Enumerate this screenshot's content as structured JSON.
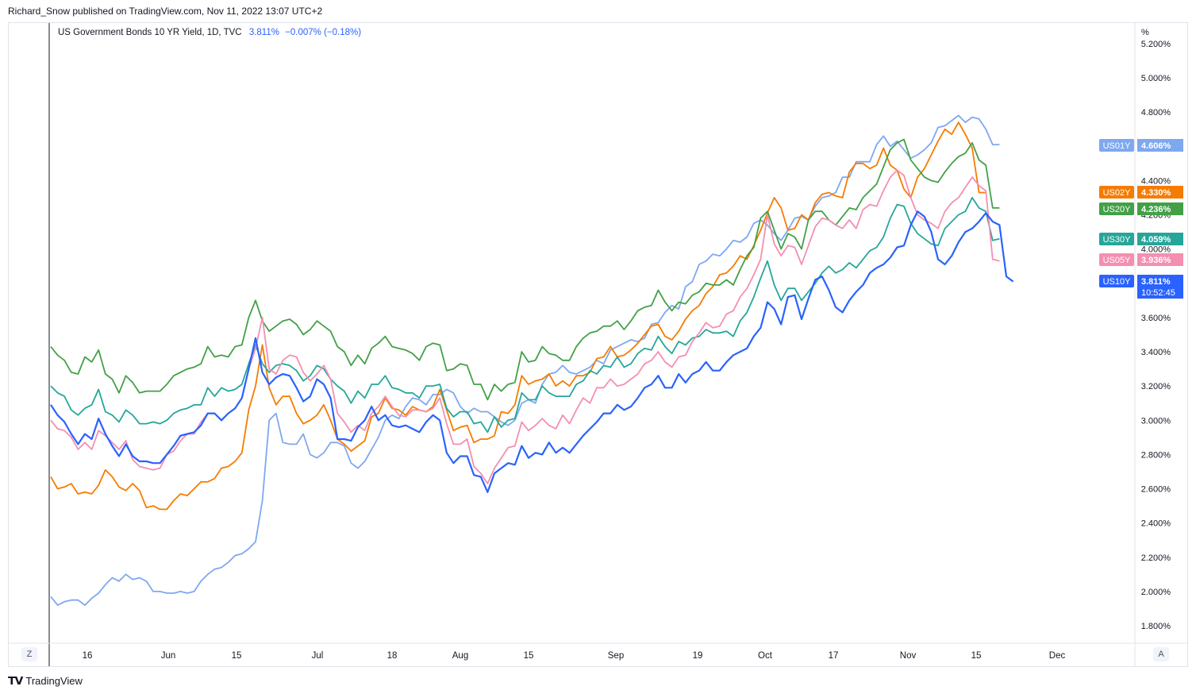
{
  "publisher_line": "Richard_Snow published on TradingView.com, Nov 11, 2022 13:07 UTC+2",
  "legend": {
    "title": "US Government Bonds 10 YR Yield, 1D, TVC",
    "value": "3.811%",
    "change": "−0.007% (−0.18%)"
  },
  "footer_logo": "TradingView",
  "axis_buttons": {
    "left": "Z",
    "right": "A"
  },
  "chart_data": {
    "type": "line",
    "y_unit": "%",
    "ylim": [
      1.7,
      5.3
    ],
    "y_ticks": [
      "1.800%",
      "2.000%",
      "2.200%",
      "2.400%",
      "2.600%",
      "2.800%",
      "3.000%",
      "3.200%",
      "3.400%",
      "3.600%",
      "4.000%",
      "4.200%",
      "4.400%",
      "4.800%",
      "5.000%",
      "5.200%"
    ],
    "x_tick_labels": [
      "16",
      "Jun",
      "15",
      "Jul",
      "18",
      "Aug",
      "15",
      "Sep",
      "19",
      "Oct",
      "17",
      "Nov",
      "15",
      "Dec"
    ],
    "last_value_labels": [
      {
        "name": "US01Y",
        "value": "4.606%",
        "color": "#7ea8f0"
      },
      {
        "name": "US02Y",
        "value": "4.330%",
        "color": "#f57c00"
      },
      {
        "name": "US20Y",
        "value": "4.236%",
        "color": "#43a047"
      },
      {
        "name": "US30Y",
        "value": "4.059%",
        "color": "#26a69a"
      },
      {
        "name": "US05Y",
        "value": "3.936%",
        "color": "#f48fb1"
      },
      {
        "name": "US10Y",
        "value": "3.811%",
        "countdown": "10:52:45",
        "color": "#2962ff"
      }
    ],
    "series": [
      {
        "name": "US01Y",
        "color": "#7ea8f0",
        "values": [
          1.97,
          1.92,
          1.94,
          1.95,
          1.95,
          1.92,
          1.96,
          1.99,
          2.04,
          2.08,
          2.06,
          2.1,
          2.07,
          2.08,
          2.06,
          2.0,
          2.0,
          1.99,
          1.99,
          2.0,
          1.99,
          2.0,
          2.06,
          2.1,
          2.13,
          2.14,
          2.17,
          2.21,
          2.22,
          2.25,
          2.29,
          2.53,
          3.0,
          3.04,
          2.87,
          2.86,
          2.86,
          2.92,
          2.8,
          2.78,
          2.81,
          2.87,
          2.87,
          2.85,
          2.75,
          2.72,
          2.76,
          2.83,
          2.9,
          3.0,
          3.03,
          3.01,
          3.08,
          3.13,
          3.12,
          3.09,
          3.15,
          3.15,
          3.18,
          3.16,
          3.08,
          3.04,
          3.07,
          3.05,
          3.05,
          3.02,
          2.99,
          2.97,
          3.0,
          3.1,
          3.12,
          3.1,
          3.21,
          3.27,
          3.28,
          3.32,
          3.28,
          3.27,
          3.29,
          3.31,
          3.35,
          3.33,
          3.41,
          3.43,
          3.45,
          3.47,
          3.46,
          3.48,
          3.56,
          3.57,
          3.63,
          3.67,
          3.65,
          3.78,
          3.81,
          3.91,
          3.93,
          3.97,
          3.96,
          4.0,
          4.05,
          4.04,
          4.07,
          4.15,
          4.17,
          4.14,
          4.09,
          4.05,
          4.11,
          4.18,
          4.19,
          4.17,
          4.25,
          4.3,
          4.31,
          4.33,
          4.42,
          4.42,
          4.51,
          4.51,
          4.51,
          4.61,
          4.66,
          4.6,
          4.63,
          4.58,
          4.53,
          4.55,
          4.58,
          4.62,
          4.71,
          4.72,
          4.75,
          4.78,
          4.74,
          4.77,
          4.76,
          4.7,
          4.61,
          4.61
        ]
      },
      {
        "name": "US02Y",
        "color": "#f57c00",
        "values": [
          2.67,
          2.6,
          2.61,
          2.63,
          2.57,
          2.58,
          2.57,
          2.62,
          2.71,
          2.67,
          2.61,
          2.59,
          2.63,
          2.59,
          2.49,
          2.5,
          2.48,
          2.48,
          2.53,
          2.57,
          2.56,
          2.6,
          2.64,
          2.64,
          2.66,
          2.72,
          2.73,
          2.76,
          2.81,
          3.06,
          3.2,
          3.44,
          3.19,
          3.09,
          3.14,
          3.14,
          3.04,
          2.98,
          3.0,
          3.03,
          3.09,
          3.0,
          2.89,
          2.86,
          2.82,
          2.85,
          2.88,
          3.02,
          3.04,
          3.13,
          3.07,
          3.06,
          3.03,
          3.08,
          3.06,
          3.05,
          3.08,
          3.18,
          3.06,
          2.94,
          2.96,
          2.97,
          2.87,
          2.89,
          2.89,
          2.91,
          3.05,
          3.04,
          3.09,
          3.26,
          3.21,
          3.23,
          3.24,
          3.27,
          3.2,
          3.23,
          3.2,
          3.26,
          3.26,
          3.28,
          3.36,
          3.37,
          3.43,
          3.37,
          3.38,
          3.41,
          3.45,
          3.5,
          3.55,
          3.56,
          3.49,
          3.47,
          3.52,
          3.59,
          3.64,
          3.67,
          3.74,
          3.78,
          3.85,
          3.86,
          3.9,
          3.96,
          3.94,
          4.02,
          4.11,
          4.21,
          4.3,
          4.24,
          4.11,
          4.12,
          4.2,
          4.17,
          4.27,
          4.32,
          4.33,
          4.31,
          4.3,
          4.45,
          4.5,
          4.5,
          4.47,
          4.49,
          4.59,
          4.49,
          4.46,
          4.35,
          4.3,
          4.42,
          4.47,
          4.55,
          4.63,
          4.7,
          4.67,
          4.74,
          4.67,
          4.59,
          4.33,
          4.33
        ]
      },
      {
        "name": "US20Y",
        "color": "#43a047",
        "values": [
          3.43,
          3.38,
          3.35,
          3.28,
          3.27,
          3.37,
          3.34,
          3.41,
          3.27,
          3.24,
          3.16,
          3.26,
          3.22,
          3.16,
          3.17,
          3.17,
          3.17,
          3.21,
          3.26,
          3.28,
          3.3,
          3.31,
          3.33,
          3.43,
          3.37,
          3.38,
          3.37,
          3.43,
          3.44,
          3.6,
          3.7,
          3.58,
          3.52,
          3.55,
          3.58,
          3.59,
          3.56,
          3.5,
          3.53,
          3.58,
          3.55,
          3.52,
          3.43,
          3.4,
          3.32,
          3.38,
          3.33,
          3.42,
          3.45,
          3.49,
          3.43,
          3.42,
          3.41,
          3.39,
          3.35,
          3.43,
          3.45,
          3.44,
          3.29,
          3.3,
          3.33,
          3.32,
          3.21,
          3.21,
          3.12,
          3.21,
          3.17,
          3.21,
          3.22,
          3.4,
          3.34,
          3.35,
          3.43,
          3.39,
          3.38,
          3.35,
          3.35,
          3.43,
          3.48,
          3.51,
          3.52,
          3.55,
          3.55,
          3.58,
          3.53,
          3.58,
          3.64,
          3.66,
          3.67,
          3.76,
          3.69,
          3.64,
          3.69,
          3.68,
          3.73,
          3.75,
          3.8,
          3.79,
          3.79,
          3.82,
          3.79,
          3.88,
          3.96,
          4.01,
          4.18,
          4.22,
          4.11,
          4.0,
          4.09,
          4.07,
          4.0,
          4.17,
          4.22,
          4.22,
          4.17,
          4.14,
          4.19,
          4.24,
          4.23,
          4.3,
          4.34,
          4.38,
          4.48,
          4.58,
          4.62,
          4.64,
          4.52,
          4.47,
          4.42,
          4.4,
          4.39,
          4.45,
          4.5,
          4.54,
          4.56,
          4.62,
          4.52,
          4.49,
          4.24,
          4.24
        ]
      },
      {
        "name": "US30Y",
        "color": "#26a69a",
        "values": [
          3.2,
          3.16,
          3.14,
          3.06,
          3.03,
          3.07,
          3.09,
          3.18,
          3.05,
          3.03,
          2.99,
          3.06,
          3.03,
          2.98,
          2.98,
          2.99,
          2.98,
          3.0,
          3.04,
          3.06,
          3.07,
          3.09,
          3.09,
          3.19,
          3.14,
          3.19,
          3.17,
          3.18,
          3.21,
          3.33,
          3.44,
          3.33,
          3.28,
          3.32,
          3.33,
          3.32,
          3.29,
          3.23,
          3.26,
          3.32,
          3.3,
          3.24,
          3.2,
          3.17,
          3.1,
          3.17,
          3.13,
          3.21,
          3.21,
          3.26,
          3.19,
          3.18,
          3.16,
          3.16,
          3.13,
          3.2,
          3.2,
          3.21,
          3.07,
          3.02,
          3.05,
          3.05,
          2.98,
          2.99,
          2.93,
          3.02,
          2.96,
          3.0,
          3.01,
          3.16,
          3.12,
          3.12,
          3.2,
          3.16,
          3.14,
          3.14,
          3.14,
          3.21,
          3.23,
          3.29,
          3.27,
          3.32,
          3.31,
          3.37,
          3.31,
          3.33,
          3.39,
          3.42,
          3.41,
          3.49,
          3.43,
          3.39,
          3.46,
          3.44,
          3.48,
          3.49,
          3.53,
          3.51,
          3.51,
          3.52,
          3.49,
          3.58,
          3.63,
          3.72,
          3.83,
          3.93,
          3.79,
          3.7,
          3.77,
          3.77,
          3.7,
          3.75,
          3.8,
          3.86,
          3.9,
          3.86,
          3.88,
          3.92,
          3.89,
          3.94,
          3.99,
          4.01,
          4.07,
          4.18,
          4.26,
          4.25,
          4.15,
          4.09,
          4.06,
          4.03,
          4.02,
          4.12,
          4.16,
          4.2,
          4.22,
          4.3,
          4.24,
          4.22,
          4.05,
          4.06
        ]
      },
      {
        "name": "US05Y",
        "color": "#f48fb1",
        "values": [
          3.0,
          2.95,
          2.94,
          2.9,
          2.83,
          2.87,
          2.83,
          2.94,
          2.91,
          2.87,
          2.83,
          2.88,
          2.77,
          2.73,
          2.72,
          2.71,
          2.72,
          2.8,
          2.82,
          2.88,
          2.92,
          2.92,
          2.99,
          3.04,
          3.04,
          3.0,
          3.04,
          3.07,
          3.13,
          3.3,
          3.42,
          3.6,
          3.3,
          3.27,
          3.35,
          3.38,
          3.37,
          3.28,
          3.23,
          3.27,
          3.32,
          3.24,
          3.04,
          2.99,
          2.93,
          2.97,
          2.94,
          3.04,
          3.08,
          3.14,
          3.08,
          3.03,
          3.02,
          3.06,
          3.06,
          3.05,
          3.07,
          3.13,
          2.98,
          2.86,
          2.86,
          2.89,
          2.73,
          2.69,
          2.63,
          2.72,
          2.78,
          2.84,
          2.85,
          2.99,
          2.94,
          2.97,
          3.01,
          2.97,
          2.95,
          3.03,
          2.98,
          3.06,
          3.13,
          3.1,
          3.19,
          3.19,
          3.24,
          3.2,
          3.21,
          3.24,
          3.27,
          3.33,
          3.35,
          3.4,
          3.34,
          3.31,
          3.37,
          3.38,
          3.46,
          3.51,
          3.57,
          3.54,
          3.55,
          3.62,
          3.64,
          3.72,
          3.77,
          3.85,
          3.94,
          4.2,
          4.03,
          3.96,
          4.02,
          4.01,
          3.91,
          4.02,
          4.13,
          4.18,
          4.17,
          4.14,
          4.12,
          4.17,
          4.12,
          4.23,
          4.26,
          4.25,
          4.34,
          4.42,
          4.46,
          4.43,
          4.3,
          4.2,
          4.17,
          4.15,
          4.12,
          4.22,
          4.27,
          4.3,
          4.36,
          4.42,
          4.37,
          4.34,
          3.94,
          3.93
        ]
      },
      {
        "name": "US10Y",
        "color": "#2962ff",
        "values": [
          3.09,
          3.03,
          2.99,
          2.92,
          2.86,
          2.92,
          2.89,
          3.01,
          2.92,
          2.85,
          2.79,
          2.86,
          2.79,
          2.76,
          2.76,
          2.75,
          2.75,
          2.8,
          2.85,
          2.91,
          2.92,
          2.93,
          2.97,
          3.04,
          3.04,
          3.0,
          3.04,
          3.07,
          3.13,
          3.3,
          3.48,
          3.28,
          3.21,
          3.25,
          3.27,
          3.26,
          3.19,
          3.11,
          3.14,
          3.24,
          3.21,
          3.13,
          2.89,
          2.89,
          2.88,
          2.96,
          3.0,
          3.08,
          3.0,
          3.03,
          2.97,
          2.96,
          2.97,
          2.95,
          2.93,
          2.99,
          3.03,
          3.0,
          2.81,
          2.75,
          2.79,
          2.79,
          2.68,
          2.67,
          2.58,
          2.69,
          2.72,
          2.75,
          2.74,
          2.85,
          2.78,
          2.81,
          2.8,
          2.87,
          2.81,
          2.84,
          2.81,
          2.86,
          2.91,
          2.95,
          2.99,
          3.04,
          3.04,
          3.09,
          3.06,
          3.08,
          3.13,
          3.19,
          3.21,
          3.26,
          3.19,
          3.19,
          3.27,
          3.22,
          3.27,
          3.29,
          3.34,
          3.29,
          3.29,
          3.34,
          3.38,
          3.4,
          3.42,
          3.49,
          3.54,
          3.69,
          3.65,
          3.56,
          3.72,
          3.73,
          3.59,
          3.71,
          3.82,
          3.84,
          3.76,
          3.66,
          3.63,
          3.7,
          3.75,
          3.79,
          3.86,
          3.89,
          3.91,
          3.95,
          4.01,
          4.02,
          4.14,
          4.22,
          4.19,
          4.1,
          3.94,
          3.91,
          3.96,
          4.04,
          4.1,
          4.12,
          4.16,
          4.21,
          4.16,
          4.14,
          3.84,
          3.81
        ]
      }
    ]
  }
}
